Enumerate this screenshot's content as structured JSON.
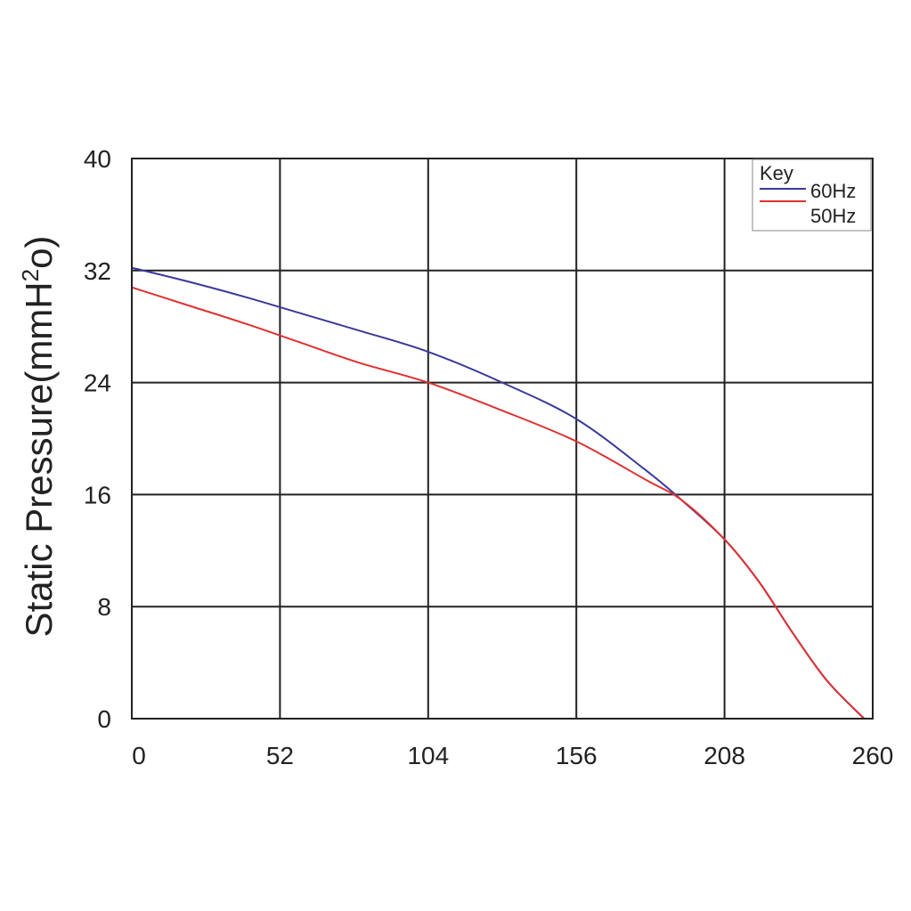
{
  "chart_data": {
    "type": "line",
    "ylabel": "Static Pressure(mmH",
    "ylabel_sup": "2",
    "ylabel_end": "o)",
    "xlim": [
      0,
      260
    ],
    "ylim": [
      0,
      40
    ],
    "x_ticks": [
      0,
      52,
      104,
      156,
      208,
      260
    ],
    "y_ticks": [
      0,
      8,
      16,
      24,
      32,
      40
    ],
    "grid": true,
    "legend": {
      "title": "Key",
      "placement": "top-right",
      "entries": [
        "60Hz",
        "50Hz"
      ]
    },
    "series": [
      {
        "name": "60Hz",
        "color": "#3a3a9a",
        "points": [
          [
            0,
            32.2
          ],
          [
            20,
            31.2
          ],
          [
            40,
            30.1
          ],
          [
            60,
            28.9
          ],
          [
            80,
            27.7
          ],
          [
            104,
            26.2
          ],
          [
            130,
            24.0
          ],
          [
            156,
            21.4
          ],
          [
            180,
            17.8
          ],
          [
            193,
            15.6
          ],
          [
            208,
            12.8
          ],
          [
            220,
            9.8
          ],
          [
            232,
            6.1
          ],
          [
            244,
            2.7
          ],
          [
            257,
            0
          ]
        ]
      },
      {
        "name": "50Hz",
        "color": "#e03030",
        "points": [
          [
            0,
            30.8
          ],
          [
            20,
            29.5
          ],
          [
            40,
            28.2
          ],
          [
            60,
            26.8
          ],
          [
            80,
            25.4
          ],
          [
            104,
            24.0
          ],
          [
            130,
            22.0
          ],
          [
            156,
            19.8
          ],
          [
            180,
            17.1
          ],
          [
            193,
            15.6
          ],
          [
            208,
            12.8
          ],
          [
            220,
            9.8
          ],
          [
            232,
            6.1
          ],
          [
            244,
            2.7
          ],
          [
            257,
            0
          ]
        ]
      }
    ]
  }
}
